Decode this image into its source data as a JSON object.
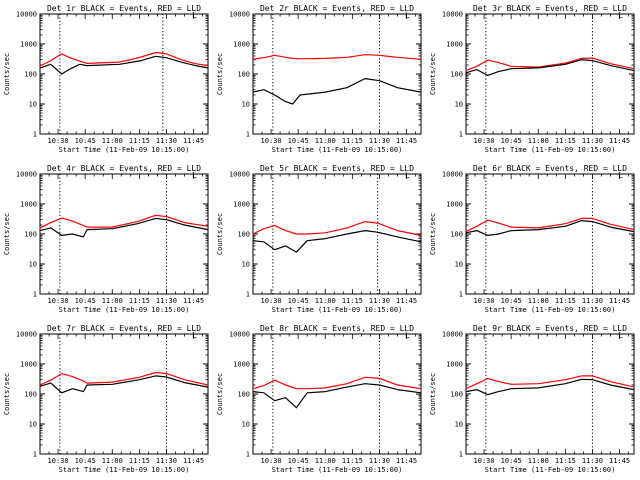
{
  "chart_data": [
    {
      "type": "line",
      "title": "Det 1r BLACK = Events, RED = LLD",
      "corner_mark": "L",
      "xlabel": "Start Time (11-Feb-09 10:15:00)",
      "ylabel": "Counts/sec",
      "yscale": "log",
      "ylim": [
        1,
        10000
      ],
      "xlim": [
        "10:20",
        "11:53"
      ],
      "ytick_labels": [
        "1",
        "10",
        "100",
        "1000",
        "10000"
      ],
      "xtick_labels": [
        "10:30",
        "10:45",
        "11:00",
        "11:15",
        "11:30",
        "11:45"
      ],
      "vlines": [
        "10:31",
        "11:28"
      ],
      "x": [
        "10:20",
        "10:26",
        "10:32",
        "10:36",
        "10:42",
        "10:46",
        "11:04",
        "11:16",
        "11:24",
        "11:30",
        "11:38",
        "11:46",
        "11:53"
      ],
      "series": [
        {
          "color": "#ff0000",
          "values": [
            185,
            280,
            470,
            360,
            270,
            225,
            250,
            370,
            520,
            470,
            300,
            220,
            190
          ]
        },
        {
          "color": "#000000",
          "values": [
            160,
            210,
            100,
            140,
            210,
            190,
            210,
            280,
            390,
            350,
            250,
            190,
            160
          ]
        }
      ]
    },
    {
      "type": "line",
      "title": "Det 2r BLACK = Events, RED = LLD",
      "corner_mark": "L",
      "xlabel": "Start Time (11-Feb-09 10:15:00)",
      "ylabel": "Counts/sec",
      "yscale": "log",
      "ylim": [
        1,
        10000
      ],
      "xlim": [
        "10:20",
        "11:53"
      ],
      "ytick_labels": [
        "1",
        "10",
        "100",
        "1000",
        "10000"
      ],
      "xtick_labels": [
        "10:30",
        "10:45",
        "11:00",
        "11:15",
        "11:30",
        "11:45"
      ],
      "vlines": [
        "10:31",
        "11:30"
      ],
      "x": [
        "10:20",
        "10:26",
        "10:32",
        "10:38",
        "10:42",
        "10:46",
        "11:00",
        "11:12",
        "11:22",
        "11:30",
        "11:40",
        "11:53"
      ],
      "series": [
        {
          "color": "#ff0000",
          "values": [
            310,
            350,
            420,
            360,
            330,
            320,
            330,
            360,
            440,
            420,
            360,
            310
          ]
        },
        {
          "color": "#000000",
          "values": [
            25,
            30,
            20,
            12,
            10,
            20,
            25,
            35,
            70,
            60,
            35,
            25
          ]
        }
      ]
    },
    {
      "type": "line",
      "title": "Det 3r BLACK = Events, RED = LLD",
      "corner_mark": "L",
      "xlabel": "Start Time (11-Feb-09 10:15:00)",
      "ylabel": "Counts/sec",
      "yscale": "log",
      "ylim": [
        1,
        10000
      ],
      "xlim": [
        "10:20",
        "11:53"
      ],
      "ytick_labels": [
        "1",
        "10",
        "100",
        "1000",
        "10000"
      ],
      "xtick_labels": [
        "10:30",
        "10:45",
        "11:00",
        "11:15",
        "11:30",
        "11:45"
      ],
      "vlines": [
        "10:31",
        "11:30"
      ],
      "x": [
        "10:20",
        "10:26",
        "10:32",
        "10:38",
        "10:45",
        "11:00",
        "11:15",
        "11:24",
        "11:30",
        "11:40",
        "11:53"
      ],
      "series": [
        {
          "color": "#ff0000",
          "values": [
            130,
            180,
            290,
            240,
            180,
            170,
            230,
            330,
            340,
            220,
            150
          ]
        },
        {
          "color": "#000000",
          "values": [
            110,
            140,
            90,
            120,
            150,
            160,
            210,
            300,
            280,
            190,
            130
          ]
        }
      ]
    },
    {
      "type": "line",
      "title": "Det 4r BLACK = Events, RED = LLD",
      "corner_mark": "L",
      "xlabel": "Start Time (11-Feb-09 10:15:00)",
      "ylabel": "Counts/sec",
      "yscale": "log",
      "ylim": [
        1,
        10000
      ],
      "xlim": [
        "10:20",
        "11:53"
      ],
      "ytick_labels": [
        "1",
        "10",
        "100",
        "1000",
        "10000"
      ],
      "xtick_labels": [
        "10:30",
        "10:45",
        "11:00",
        "11:15",
        "11:30",
        "11:45"
      ],
      "vlines": [
        "10:31",
        "11:30"
      ],
      "x": [
        "10:20",
        "10:26",
        "10:32",
        "10:38",
        "10:44",
        "10:46",
        "11:00",
        "11:14",
        "11:24",
        "11:30",
        "11:40",
        "11:53"
      ],
      "series": [
        {
          "color": "#ff0000",
          "values": [
            160,
            240,
            340,
            270,
            190,
            170,
            170,
            260,
            420,
            380,
            240,
            180
          ]
        },
        {
          "color": "#000000",
          "values": [
            130,
            160,
            90,
            100,
            80,
            140,
            150,
            220,
            330,
            300,
            200,
            140
          ]
        }
      ]
    },
    {
      "type": "line",
      "title": "Det 5r BLACK = Events, RED = LLD",
      "corner_mark": "L",
      "xlabel": "Start Time (11-Feb-09 10:15:00)",
      "ylabel": "Counts/sec",
      "yscale": "log",
      "ylim": [
        1,
        10000
      ],
      "xlim": [
        "10:20",
        "11:53"
      ],
      "ytick_labels": [
        "1",
        "10",
        "100",
        "1000",
        "10000"
      ],
      "xtick_labels": [
        "10:30",
        "10:45",
        "11:00",
        "11:15",
        "11:30",
        "11:45"
      ],
      "vlines": [
        "10:31",
        "11:29"
      ],
      "x": [
        "10:20",
        "10:26",
        "10:32",
        "10:38",
        "10:44",
        "10:50",
        "11:00",
        "11:12",
        "11:22",
        "11:29",
        "11:40",
        "11:53"
      ],
      "series": [
        {
          "color": "#ff0000",
          "values": [
            100,
            150,
            190,
            130,
            100,
            100,
            110,
            160,
            260,
            230,
            130,
            90
          ]
        },
        {
          "color": "#000000",
          "values": [
            60,
            55,
            30,
            40,
            25,
            60,
            70,
            100,
            130,
            115,
            80,
            55
          ]
        }
      ]
    },
    {
      "type": "line",
      "title": "Det 6r BLACK = Events, RED = LLD",
      "corner_mark": "L",
      "xlabel": "Start Time (11-Feb-09 10:15:00)",
      "ylabel": "Counts/sec",
      "yscale": "log",
      "ylim": [
        1,
        10000
      ],
      "xlim": [
        "10:20",
        "11:53"
      ],
      "ytick_labels": [
        "1",
        "10",
        "100",
        "1000",
        "10000"
      ],
      "xtick_labels": [
        "10:30",
        "10:45",
        "11:00",
        "11:15",
        "11:30",
        "11:45"
      ],
      "vlines": [
        "10:31",
        "11:30"
      ],
      "x": [
        "10:20",
        "10:26",
        "10:32",
        "10:38",
        "10:45",
        "11:00",
        "11:15",
        "11:24",
        "11:30",
        "11:40",
        "11:53"
      ],
      "series": [
        {
          "color": "#ff0000",
          "values": [
            120,
            180,
            290,
            230,
            170,
            160,
            220,
            330,
            330,
            210,
            140
          ]
        },
        {
          "color": "#000000",
          "values": [
            110,
            130,
            90,
            100,
            130,
            140,
            180,
            280,
            260,
            170,
            120
          ]
        }
      ]
    },
    {
      "type": "line",
      "title": "Det 7r BLACK = Events, RED = LLD",
      "corner_mark": "L",
      "xlabel": "Start Time (11-Feb-09 10:15:00)",
      "ylabel": "Counts/sec",
      "yscale": "log",
      "ylim": [
        1,
        10000
      ],
      "xlim": [
        "10:20",
        "11:53"
      ],
      "ytick_labels": [
        "1",
        "10",
        "100",
        "1000",
        "10000"
      ],
      "xtick_labels": [
        "10:30",
        "10:45",
        "11:00",
        "11:15",
        "11:30",
        "11:45"
      ],
      "vlines": [
        "10:31",
        "11:30"
      ],
      "x": [
        "10:20",
        "10:26",
        "10:32",
        "10:38",
        "10:44",
        "10:46",
        "11:00",
        "11:15",
        "11:24",
        "11:30",
        "11:40",
        "11:53"
      ],
      "series": [
        {
          "color": "#ff0000",
          "values": [
            200,
            290,
            480,
            380,
            270,
            230,
            250,
            360,
            520,
            480,
            300,
            200
          ]
        },
        {
          "color": "#000000",
          "values": [
            180,
            230,
            110,
            150,
            120,
            200,
            210,
            300,
            400,
            370,
            240,
            170
          ]
        }
      ]
    },
    {
      "type": "line",
      "title": "Det 8r BLACK = Events, RED = LLD",
      "corner_mark": "L",
      "xlabel": "Start Time (11-Feb-09 10:15:00)",
      "ylabel": "Counts/sec",
      "yscale": "log",
      "ylim": [
        1,
        10000
      ],
      "xlim": [
        "10:20",
        "11:53"
      ],
      "ytick_labels": [
        "1",
        "10",
        "100",
        "1000",
        "10000"
      ],
      "xtick_labels": [
        "10:30",
        "10:45",
        "11:00",
        "11:15",
        "11:30",
        "11:45"
      ],
      "vlines": [
        "10:31",
        "11:30"
      ],
      "x": [
        "10:20",
        "10:26",
        "10:32",
        "10:38",
        "10:44",
        "10:50",
        "11:00",
        "11:12",
        "11:22",
        "11:30",
        "11:40",
        "11:53"
      ],
      "series": [
        {
          "color": "#ff0000",
          "values": [
            150,
            190,
            290,
            200,
            150,
            150,
            160,
            220,
            360,
            330,
            200,
            150
          ]
        },
        {
          "color": "#000000",
          "values": [
            120,
            110,
            60,
            75,
            35,
            110,
            120,
            170,
            220,
            200,
            140,
            110
          ]
        }
      ]
    },
    {
      "type": "line",
      "title": "Det 9r BLACK = Events, RED = LLD",
      "corner_mark": "L",
      "xlabel": "Start Time (11-Feb-09 10:15:00)",
      "ylabel": "Counts/sec",
      "yscale": "log",
      "ylim": [
        1,
        10000
      ],
      "xlim": [
        "10:20",
        "11:53"
      ],
      "ytick_labels": [
        "1",
        "10",
        "100",
        "1000",
        "10000"
      ],
      "xtick_labels": [
        "10:30",
        "10:45",
        "11:00",
        "11:15",
        "11:30",
        "11:45"
      ],
      "vlines": [
        "10:31",
        "11:30"
      ],
      "x": [
        "10:20",
        "10:26",
        "10:32",
        "10:38",
        "10:45",
        "11:00",
        "11:15",
        "11:24",
        "11:30",
        "11:40",
        "11:53"
      ],
      "series": [
        {
          "color": "#ff0000",
          "values": [
            150,
            220,
            330,
            260,
            210,
            220,
            300,
            400,
            400,
            260,
            170
          ]
        },
        {
          "color": "#000000",
          "values": [
            120,
            140,
            95,
            120,
            150,
            160,
            220,
            310,
            300,
            200,
            140
          ]
        }
      ]
    }
  ]
}
